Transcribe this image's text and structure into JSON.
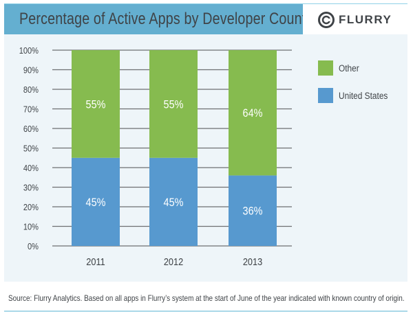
{
  "header": {
    "title": "Percentage of Active Apps by Developer Country",
    "logo_text": "FLURRY",
    "logo_icon": "flurry-swirl-icon"
  },
  "footer": {
    "source": "Source:  Flurry Analytics. Based on all apps in Flurry’s system at the start of June of the year indicated with known country of origin."
  },
  "chart_data": {
    "type": "bar",
    "stacked": true,
    "categories": [
      "2011",
      "2012",
      "2013"
    ],
    "series": [
      {
        "name": "United States",
        "values": [
          45,
          45,
          36
        ],
        "labels": [
          "45%",
          "45%",
          "36%"
        ],
        "color": "#5799cf"
      },
      {
        "name": "Other",
        "values": [
          55,
          55,
          64
        ],
        "labels": [
          "55%",
          "55%",
          "64%"
        ],
        "color": "#86bb4f"
      }
    ],
    "ylim": [
      0,
      100
    ],
    "yticks": [
      "0%",
      "10%",
      "20%",
      "30%",
      "40%",
      "50%",
      "60%",
      "70%",
      "80%",
      "90%",
      "100%"
    ],
    "grid": true,
    "legend": {
      "placement": "right",
      "order": [
        "Other",
        "United States"
      ]
    }
  }
}
